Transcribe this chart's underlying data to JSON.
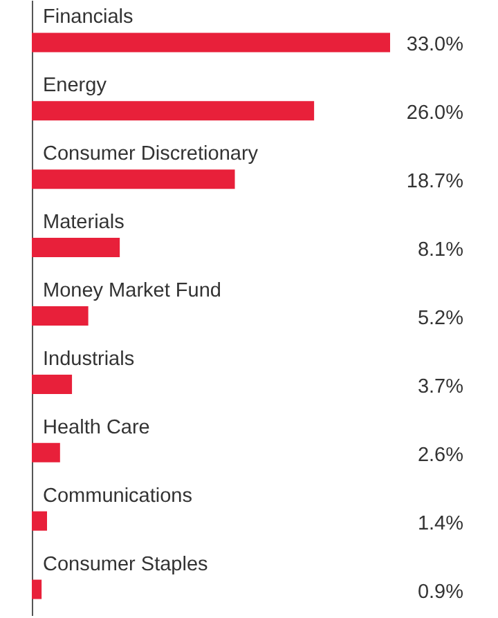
{
  "chart_data": {
    "type": "bar",
    "orientation": "horizontal",
    "color": "#e8203a",
    "categories": [
      "Financials",
      "Energy",
      "Consumer Discretionary",
      "Materials",
      "Money Market Fund",
      "Industrials",
      "Health Care",
      "Communications",
      "Consumer Staples"
    ],
    "values": [
      33.0,
      26.0,
      18.7,
      8.1,
      5.2,
      3.7,
      2.6,
      1.4,
      0.9
    ],
    "value_labels": [
      "33.0%",
      "26.0%",
      "18.7%",
      "8.1%",
      "5.2%",
      "3.7%",
      "2.6%",
      "1.4%",
      "0.9%"
    ]
  }
}
